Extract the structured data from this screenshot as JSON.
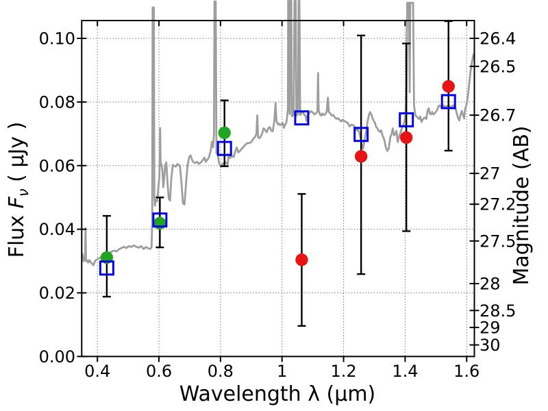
{
  "chart_data": {
    "type": "line",
    "description": "Galaxy SED: observed grey spectrum with photometric data points (filled circles with error bars) and model photometry (open blue squares)",
    "axes": {
      "x": {
        "label": "Wavelength  λ (μm)",
        "lim": [
          0.349,
          1.625
        ],
        "ticks": [
          {
            "v": 0.4,
            "label": "0.4"
          },
          {
            "v": 0.6,
            "label": "0.6"
          },
          {
            "v": 0.8,
            "label": "0.8"
          },
          {
            "v": 1.0,
            "label": "1"
          },
          {
            "v": 1.2,
            "label": "1.2"
          },
          {
            "v": 1.4,
            "label": "1.4"
          },
          {
            "v": 1.6,
            "label": "1.6"
          }
        ]
      },
      "y_left": {
        "label_parts": {
          "prefix": "Flux  ",
          "symbol": "F",
          "sub": "ν",
          "suffix": "  ( μJy )"
        },
        "label": "Flux Fν ( μJy )",
        "lim": [
          0.0,
          0.1056
        ],
        "ticks": [
          {
            "v": 0.0,
            "label": "0.00"
          },
          {
            "v": 0.02,
            "label": "0.02"
          },
          {
            "v": 0.04,
            "label": "0.04"
          },
          {
            "v": 0.06,
            "label": "0.06"
          },
          {
            "v": 0.08,
            "label": "0.08"
          },
          {
            "v": 0.1,
            "label": "0.10"
          }
        ]
      },
      "y_right": {
        "label": "Magnitude (AB)",
        "note": "AB magnitude ticks placed at flux = 10^((23.9-m)/2.5) μJy",
        "ticks": [
          {
            "v": 26.4,
            "label": "26.4"
          },
          {
            "v": 26.5,
            "label": "26.5"
          },
          {
            "v": 26.7,
            "label": "26.7"
          },
          {
            "v": 27.0,
            "label": "27"
          },
          {
            "v": 27.2,
            "label": "27.2"
          },
          {
            "v": 27.5,
            "label": "27.5"
          },
          {
            "v": 28.0,
            "label": "28"
          },
          {
            "v": 28.5,
            "label": "28.5"
          },
          {
            "v": 29.0,
            "label": "29"
          },
          {
            "v": 30.0,
            "label": "30"
          }
        ]
      },
      "grid": true
    },
    "colors": {
      "spectrum": "#9e9e9e",
      "green_point": "#1fa51f",
      "red_point": "#e81414",
      "square": "#0000ee",
      "errorbar": "#000000"
    },
    "points": [
      {
        "wavelength": 0.4305,
        "square_flux": 0.0278,
        "circle_flux": 0.0311,
        "circle_color": "green",
        "err_lo": 0.0188,
        "err_hi": 0.0442
      },
      {
        "wavelength": 0.603,
        "square_flux": 0.0429,
        "circle_flux": 0.0419,
        "circle_color": "green",
        "err_lo": 0.0343,
        "err_hi": 0.05
      },
      {
        "wavelength": 0.813,
        "square_flux": 0.0654,
        "circle_flux": 0.0703,
        "circle_color": "green",
        "err_lo": 0.0598,
        "err_hi": 0.0805
      },
      {
        "wavelength": 1.064,
        "square_flux": 0.075,
        "circle_flux": 0.0304,
        "circle_color": "red",
        "err_lo": 0.0096,
        "err_hi": 0.0511
      },
      {
        "wavelength": 1.257,
        "square_flux": 0.0698,
        "circle_flux": 0.0629,
        "circle_color": "red",
        "err_lo": 0.0259,
        "err_hi": 0.1009
      },
      {
        "wavelength": 1.404,
        "square_flux": 0.0744,
        "circle_flux": 0.0688,
        "circle_color": "red",
        "err_lo": 0.0394,
        "err_hi": 0.0984
      },
      {
        "wavelength": 1.541,
        "square_flux": 0.0801,
        "circle_flux": 0.0849,
        "circle_color": "red",
        "err_lo": 0.0647,
        "err_hi": 0.1054
      }
    ],
    "spectrum": [
      [
        0.349,
        0.031
      ],
      [
        0.352,
        0.0322
      ],
      [
        0.355,
        0.03
      ],
      [
        0.358,
        0.0307
      ],
      [
        0.36,
        0.031
      ],
      [
        0.3615,
        0.0403
      ],
      [
        0.363,
        0.03
      ],
      [
        0.3665,
        0.0302
      ],
      [
        0.37,
        0.0295
      ],
      [
        0.374,
        0.0303
      ],
      [
        0.378,
        0.0296
      ],
      [
        0.383,
        0.0291
      ],
      [
        0.387,
        0.0287
      ],
      [
        0.392,
        0.03
      ],
      [
        0.397,
        0.0304
      ],
      [
        0.403,
        0.0307
      ],
      [
        0.409,
        0.0311
      ],
      [
        0.415,
        0.0309
      ],
      [
        0.423,
        0.0312
      ],
      [
        0.431,
        0.0315
      ],
      [
        0.44,
        0.0325
      ],
      [
        0.448,
        0.0331
      ],
      [
        0.456,
        0.0333
      ],
      [
        0.462,
        0.033
      ],
      [
        0.47,
        0.0337
      ],
      [
        0.478,
        0.0341
      ],
      [
        0.486,
        0.0345
      ],
      [
        0.494,
        0.0341
      ],
      [
        0.502,
        0.0347
      ],
      [
        0.51,
        0.0344
      ],
      [
        0.518,
        0.0349
      ],
      [
        0.526,
        0.0345
      ],
      [
        0.534,
        0.0342
      ],
      [
        0.542,
        0.0347
      ],
      [
        0.55,
        0.0338
      ],
      [
        0.558,
        0.0344
      ],
      [
        0.565,
        0.034
      ],
      [
        0.572,
        0.0338
      ],
      [
        0.576,
        0.0344
      ],
      [
        0.578,
        0.042
      ],
      [
        0.5795,
        0.1097
      ],
      [
        0.5835,
        0.1097
      ],
      [
        0.585,
        0.05
      ],
      [
        0.587,
        0.0474
      ],
      [
        0.59,
        0.0492
      ],
      [
        0.594,
        0.0488
      ],
      [
        0.598,
        0.053
      ],
      [
        0.601,
        0.056
      ],
      [
        0.603,
        0.062
      ],
      [
        0.604,
        0.0718
      ],
      [
        0.6055,
        0.06
      ],
      [
        0.608,
        0.0606
      ],
      [
        0.611,
        0.0586
      ],
      [
        0.614,
        0.0532
      ],
      [
        0.617,
        0.056
      ],
      [
        0.62,
        0.0598
      ],
      [
        0.624,
        0.061
      ],
      [
        0.628,
        0.0545
      ],
      [
        0.632,
        0.0496
      ],
      [
        0.636,
        0.049
      ],
      [
        0.64,
        0.0558
      ],
      [
        0.645,
        0.0602
      ],
      [
        0.65,
        0.0599
      ],
      [
        0.655,
        0.0597
      ],
      [
        0.66,
        0.0605
      ],
      [
        0.668,
        0.06
      ],
      [
        0.673,
        0.055
      ],
      [
        0.678,
        0.0481
      ],
      [
        0.683,
        0.0478
      ],
      [
        0.688,
        0.0544
      ],
      [
        0.693,
        0.06
      ],
      [
        0.698,
        0.0627
      ],
      [
        0.703,
        0.0632
      ],
      [
        0.708,
        0.0617
      ],
      [
        0.713,
        0.061
      ],
      [
        0.718,
        0.0608
      ],
      [
        0.724,
        0.0612
      ],
      [
        0.73,
        0.0605
      ],
      [
        0.736,
        0.061
      ],
      [
        0.742,
        0.0617
      ],
      [
        0.748,
        0.0625
      ],
      [
        0.752,
        0.0612
      ],
      [
        0.756,
        0.0617
      ],
      [
        0.762,
        0.0625
      ],
      [
        0.768,
        0.0645
      ],
      [
        0.772,
        0.0675
      ],
      [
        0.776,
        0.0658
      ],
      [
        0.779,
        0.07
      ],
      [
        0.7805,
        0.1116
      ],
      [
        0.7845,
        0.1116
      ],
      [
        0.787,
        0.064
      ],
      [
        0.791,
        0.0637
      ],
      [
        0.795,
        0.061
      ],
      [
        0.799,
        0.06
      ],
      [
        0.803,
        0.0597
      ],
      [
        0.807,
        0.0607
      ],
      [
        0.811,
        0.06
      ],
      [
        0.815,
        0.0611
      ],
      [
        0.819,
        0.0609
      ],
      [
        0.823,
        0.0603
      ],
      [
        0.827,
        0.0634
      ],
      [
        0.831,
        0.0624
      ],
      [
        0.837,
        0.063
      ],
      [
        0.843,
        0.0627
      ],
      [
        0.848,
        0.0644
      ],
      [
        0.853,
        0.0657
      ],
      [
        0.858,
        0.0641
      ],
      [
        0.864,
        0.0647
      ],
      [
        0.87,
        0.0654
      ],
      [
        0.876,
        0.066
      ],
      [
        0.882,
        0.0667
      ],
      [
        0.888,
        0.0671
      ],
      [
        0.894,
        0.0671
      ],
      [
        0.9,
        0.0674
      ],
      [
        0.906,
        0.0683
      ],
      [
        0.912,
        0.069
      ],
      [
        0.917,
        0.07
      ],
      [
        0.9195,
        0.0758
      ],
      [
        0.922,
        0.069
      ],
      [
        0.926,
        0.0686
      ],
      [
        0.93,
        0.069
      ],
      [
        0.935,
        0.07
      ],
      [
        0.94,
        0.0717
      ],
      [
        0.945,
        0.0712
      ],
      [
        0.95,
        0.0705
      ],
      [
        0.955,
        0.0717
      ],
      [
        0.96,
        0.0721
      ],
      [
        0.965,
        0.071
      ],
      [
        0.97,
        0.0708
      ],
      [
        0.975,
        0.074
      ],
      [
        0.979,
        0.0797
      ],
      [
        0.982,
        0.074
      ],
      [
        0.986,
        0.073
      ],
      [
        0.99,
        0.0732
      ],
      [
        0.994,
        0.0727
      ],
      [
        0.998,
        0.073
      ],
      [
        1.002,
        0.0734
      ],
      [
        1.006,
        0.0719
      ],
      [
        1.01,
        0.0729
      ],
      [
        1.014,
        0.0734
      ],
      [
        1.017,
        0.0758
      ],
      [
        1.019,
        0.078
      ],
      [
        1.02,
        0.1118
      ],
      [
        1.0235,
        0.1118
      ],
      [
        1.025,
        0.0762
      ],
      [
        1.0268,
        0.1118
      ],
      [
        1.03,
        0.1118
      ],
      [
        1.032,
        0.0755
      ],
      [
        1.038,
        0.076
      ],
      [
        1.0405,
        0.1118
      ],
      [
        1.0445,
        0.1118
      ],
      [
        1.0468,
        0.0757
      ],
      [
        1.052,
        0.0762
      ],
      [
        1.0538,
        0.1118
      ],
      [
        1.0565,
        0.1118
      ],
      [
        1.059,
        0.0759
      ],
      [
        1.063,
        0.0764
      ],
      [
        1.068,
        0.077
      ],
      [
        1.072,
        0.076
      ],
      [
        1.076,
        0.0757
      ],
      [
        1.08,
        0.074
      ],
      [
        1.084,
        0.0761
      ],
      [
        1.09,
        0.0767
      ],
      [
        1.095,
        0.0771
      ],
      [
        1.1,
        0.0767
      ],
      [
        1.105,
        0.0761
      ],
      [
        1.11,
        0.0764
      ],
      [
        1.115,
        0.077
      ],
      [
        1.117,
        0.0891
      ],
      [
        1.119,
        0.0774
      ],
      [
        1.123,
        0.0761
      ],
      [
        1.127,
        0.0757
      ],
      [
        1.131,
        0.0764
      ],
      [
        1.135,
        0.0759
      ],
      [
        1.14,
        0.0761
      ],
      [
        1.145,
        0.0769
      ],
      [
        1.149,
        0.0814
      ],
      [
        1.152,
        0.0769
      ],
      [
        1.157,
        0.0764
      ],
      [
        1.162,
        0.0757
      ],
      [
        1.167,
        0.0759
      ],
      [
        1.172,
        0.0751
      ],
      [
        1.177,
        0.0747
      ],
      [
        1.182,
        0.0749
      ],
      [
        1.187,
        0.0744
      ],
      [
        1.192,
        0.0739
      ],
      [
        1.197,
        0.0744
      ],
      [
        1.202,
        0.0741
      ],
      [
        1.208,
        0.0737
      ],
      [
        1.214,
        0.0734
      ],
      [
        1.22,
        0.0723
      ],
      [
        1.226,
        0.0729
      ],
      [
        1.232,
        0.0727
      ],
      [
        1.238,
        0.0719
      ],
      [
        1.243,
        0.0711
      ],
      [
        1.247,
        0.0717
      ],
      [
        1.252,
        0.0699
      ],
      [
        1.257,
        0.0679
      ],
      [
        1.26,
        0.0657
      ],
      [
        1.263,
        0.0654
      ],
      [
        1.266,
        0.0669
      ],
      [
        1.27,
        0.0689
      ],
      [
        1.274,
        0.0711
      ],
      [
        1.278,
        0.0739
      ],
      [
        1.282,
        0.0757
      ],
      [
        1.286,
        0.0768
      ],
      [
        1.29,
        0.0761
      ],
      [
        1.294,
        0.0749
      ],
      [
        1.298,
        0.0741
      ],
      [
        1.302,
        0.0734
      ],
      [
        1.306,
        0.0721
      ],
      [
        1.31,
        0.0717
      ],
      [
        1.314,
        0.0709
      ],
      [
        1.318,
        0.0706
      ],
      [
        1.322,
        0.0711
      ],
      [
        1.327,
        0.0694
      ],
      [
        1.332,
        0.0682
      ],
      [
        1.337,
        0.0659
      ],
      [
        1.342,
        0.0646
      ],
      [
        1.347,
        0.0654
      ],
      [
        1.352,
        0.0689
      ],
      [
        1.356,
        0.0699
      ],
      [
        1.36,
        0.0717
      ],
      [
        1.364,
        0.0695
      ],
      [
        1.368,
        0.0699
      ],
      [
        1.372,
        0.0709
      ],
      [
        1.376,
        0.0674
      ],
      [
        1.38,
        0.0689
      ],
      [
        1.385,
        0.0704
      ],
      [
        1.39,
        0.0719
      ],
      [
        1.395,
        0.0729
      ],
      [
        1.398,
        0.0739
      ],
      [
        1.401,
        0.0759
      ],
      [
        1.404,
        0.083
      ],
      [
        1.407,
        0.1112
      ],
      [
        1.4125,
        0.1112
      ],
      [
        1.415,
        0.083
      ],
      [
        1.417,
        0.1112
      ],
      [
        1.426,
        0.1112
      ],
      [
        1.429,
        0.079
      ],
      [
        1.433,
        0.076
      ],
      [
        1.437,
        0.0754
      ],
      [
        1.441,
        0.0751
      ],
      [
        1.445,
        0.0747
      ],
      [
        1.449,
        0.0754
      ],
      [
        1.453,
        0.0737
      ],
      [
        1.457,
        0.0744
      ],
      [
        1.461,
        0.0749
      ],
      [
        1.465,
        0.0751
      ],
      [
        1.469,
        0.0747
      ],
      [
        1.4735,
        0.0775
      ],
      [
        1.477,
        0.078
      ],
      [
        1.48,
        0.0764
      ],
      [
        1.484,
        0.0761
      ],
      [
        1.488,
        0.0769
      ],
      [
        1.492,
        0.0761
      ],
      [
        1.496,
        0.0764
      ],
      [
        1.5,
        0.0769
      ],
      [
        1.504,
        0.0774
      ],
      [
        1.508,
        0.0786
      ],
      [
        1.512,
        0.0789
      ],
      [
        1.516,
        0.0784
      ],
      [
        1.52,
        0.0787
      ],
      [
        1.525,
        0.0789
      ],
      [
        1.53,
        0.0784
      ],
      [
        1.535,
        0.0787
      ],
      [
        1.54,
        0.0789
      ],
      [
        1.545,
        0.0787
      ],
      [
        1.55,
        0.0782
      ],
      [
        1.555,
        0.0789
      ],
      [
        1.56,
        0.0787
      ],
      [
        1.564,
        0.0779
      ],
      [
        1.568,
        0.0764
      ],
      [
        1.572,
        0.075
      ],
      [
        1.576,
        0.0742
      ],
      [
        1.58,
        0.076
      ],
      [
        1.584,
        0.0772
      ],
      [
        1.588,
        0.076
      ],
      [
        1.592,
        0.0748
      ],
      [
        1.595,
        0.0778
      ],
      [
        1.599,
        0.079
      ],
      [
        1.603,
        0.081
      ],
      [
        1.607,
        0.0845
      ],
      [
        1.612,
        0.089
      ],
      [
        1.617,
        0.0925
      ],
      [
        1.622,
        0.0948
      ],
      [
        1.6249,
        0.0953
      ]
    ]
  }
}
